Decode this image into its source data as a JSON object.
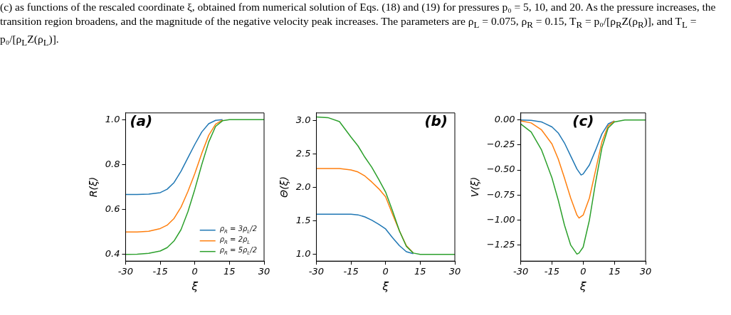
{
  "chart_data": [
    {
      "type": "other",
      "annotations": [
        "(c) as functions of the rescaled coordinate ξ, obtained from numerical solution of Eqs. (18) and (19) for pressures p₀ = 5, 10, and 20. As the pressure increases, the transition region broadens, and the magnitude of the negative velocity peak increases. The parameters are ρ$_{L}$ = 0.075, ρ$_{R}$ = 0.15, T$_{R}$ = p₀/[ρ$_{R}$Z(ρ$_{R}$)], and T$_{L}$ = p₀/[ρ$_{L}$Z(ρ$_{L}$)]."
      ]
    },
    {
      "type": "line",
      "title": "(a)",
      "xlabel": "ξ",
      "ylabel": "R(ξ)",
      "x": [
        -30,
        -25,
        -20,
        -15,
        -12,
        -9,
        -6,
        -3,
        0,
        3,
        6,
        9,
        12,
        15,
        20,
        25,
        30
      ],
      "series": [
        {
          "name": "ρ$_{R}$ = 3ρ$_{L}$/2",
          "color": "#1f77b4",
          "values": [
            0.667,
            0.667,
            0.668,
            0.675,
            0.69,
            0.72,
            0.77,
            0.83,
            0.89,
            0.945,
            0.982,
            0.997,
            1.0,
            null,
            null,
            null,
            null
          ]
        },
        {
          "name": "ρ$_{R}$ = 2ρ$_{L}$",
          "color": "#ff7f0e",
          "values": [
            0.5,
            0.5,
            0.503,
            0.515,
            0.53,
            0.56,
            0.61,
            0.68,
            0.76,
            0.85,
            0.93,
            0.98,
            0.998,
            null,
            null,
            null,
            null
          ]
        },
        {
          "name": "ρ$_{R}$ = 5ρ$_{L}$/2",
          "color": "#2ca02c",
          "values": [
            0.4,
            0.401,
            0.405,
            0.415,
            0.43,
            0.46,
            0.51,
            0.59,
            0.69,
            0.8,
            0.9,
            0.97,
            0.995,
            1.0,
            1.0,
            1.0,
            1.0
          ]
        }
      ],
      "xlim": [
        -30,
        30
      ],
      "xticks": [
        -30,
        -15,
        0,
        15,
        30
      ],
      "ylim": [
        0.37,
        1.03
      ],
      "yticks": [
        0.4,
        0.6,
        0.8,
        {
          "value": 1,
          "label": "1.0"
        }
      ],
      "legend": "bottom right",
      "grid": false,
      "marker": "none"
    },
    {
      "type": "line",
      "title": "(b)",
      "xlabel": "ξ",
      "ylabel": "Θ(ξ)",
      "x": [
        -30,
        -25,
        -20,
        -15,
        -12,
        -9,
        -6,
        -3,
        0,
        3,
        6,
        9,
        12,
        15,
        20,
        25,
        30
      ],
      "series": [
        {
          "color": "#1f77b4",
          "values": [
            1.6,
            1.6,
            1.6,
            1.6,
            1.59,
            1.56,
            1.51,
            1.45,
            1.38,
            1.25,
            1.13,
            1.04,
            1.01,
            null,
            null,
            null,
            null
          ]
        },
        {
          "color": "#ff7f0e",
          "values": [
            2.28,
            2.28,
            2.28,
            2.26,
            2.23,
            2.17,
            2.08,
            1.98,
            1.86,
            1.6,
            1.35,
            1.13,
            1.02,
            null,
            null,
            null,
            null
          ]
        },
        {
          "color": "#2ca02c",
          "values": [
            3.05,
            3.04,
            2.98,
            2.75,
            2.62,
            2.45,
            2.3,
            2.12,
            1.93,
            1.65,
            1.35,
            1.12,
            1.02,
            1.0,
            1.0,
            1.0,
            1.0
          ]
        }
      ],
      "xlim": [
        -30,
        30
      ],
      "xticks": [
        -30,
        -15,
        0,
        15,
        30
      ],
      "ylim": [
        0.9,
        3.11
      ],
      "yticks": [
        {
          "value": 1,
          "label": "1.0"
        },
        1.5,
        {
          "value": 2,
          "label": "2.0"
        },
        2.5,
        {
          "value": 3,
          "label": "3.0"
        }
      ],
      "grid": false,
      "marker": "none"
    },
    {
      "type": "line",
      "title": "(c)",
      "xlabel": "ξ",
      "ylabel": "V(ξ)",
      "series": [
        {
          "color": "#1f77b4",
          "x": [
            -30,
            -25,
            -20,
            -15,
            -12,
            -9,
            -6,
            -3,
            -1,
            0,
            3,
            6,
            9,
            12,
            15
          ],
          "values": [
            0,
            -0.005,
            -0.02,
            -0.07,
            -0.13,
            -0.23,
            -0.36,
            -0.49,
            -0.55,
            -0.54,
            -0.45,
            -0.3,
            -0.14,
            -0.04,
            -0.01
          ]
        },
        {
          "color": "#ff7f0e",
          "x": [
            -30,
            -25,
            -20,
            -15,
            -12,
            -9,
            -6,
            -3,
            -2,
            0,
            3,
            6,
            9,
            12,
            15
          ],
          "values": [
            -0.01,
            -0.03,
            -0.1,
            -0.24,
            -0.39,
            -0.58,
            -0.78,
            -0.95,
            -0.98,
            -0.95,
            -0.78,
            -0.5,
            -0.22,
            -0.06,
            -0.01
          ]
        },
        {
          "color": "#2ca02c",
          "x": [
            -30,
            -25,
            -20,
            -15,
            -12,
            -9,
            -6,
            -3,
            -2,
            0,
            3,
            6,
            9,
            12,
            15,
            20,
            30
          ],
          "values": [
            -0.04,
            -0.12,
            -0.3,
            -0.58,
            -0.8,
            -1.05,
            -1.25,
            -1.34,
            -1.33,
            -1.27,
            -1.0,
            -0.62,
            -0.28,
            -0.08,
            -0.02,
            0,
            0
          ]
        }
      ],
      "xlim": [
        -30,
        30
      ],
      "xticks": [
        -30,
        -15,
        0,
        15,
        30
      ],
      "ylim": [
        -1.41,
        0.07
      ],
      "yticks": [
        {
          "value": -1.25,
          "label": "−1.25"
        },
        {
          "value": -1,
          "label": "−1.00"
        },
        {
          "value": -0.75,
          "label": "−0.75"
        },
        {
          "value": -0.5,
          "label": "−0.50"
        },
        {
          "value": -0.25,
          "label": "−0.25"
        },
        {
          "value": 0,
          "label": "0.00"
        }
      ],
      "grid": false,
      "marker": "none"
    }
  ]
}
